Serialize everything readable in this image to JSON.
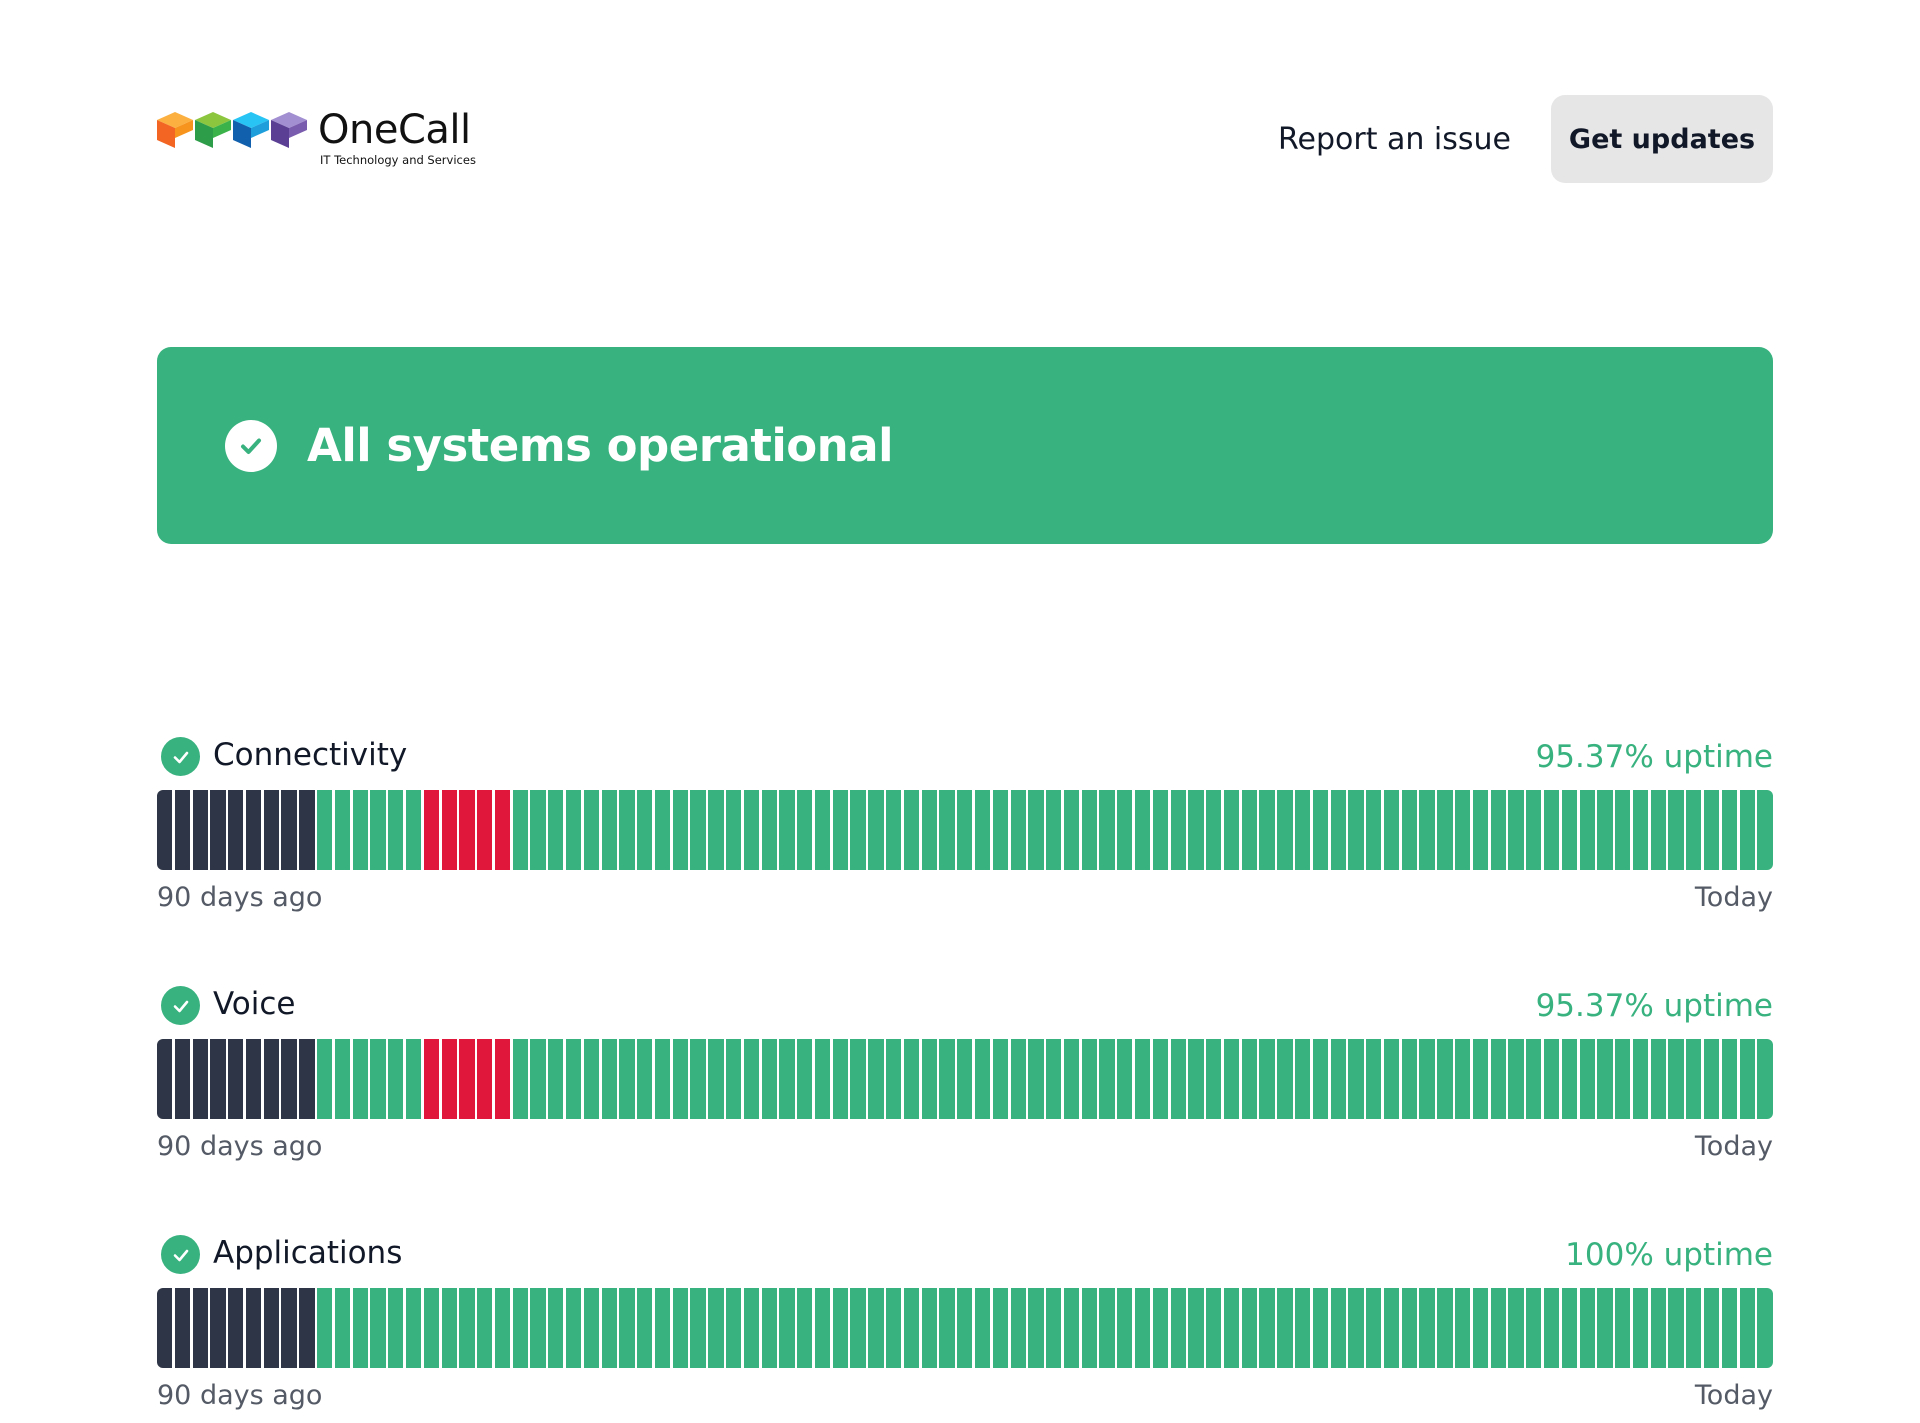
{
  "header": {
    "logo": {
      "name": "OneCall",
      "tagline": "IT Technology and Services",
      "colors": [
        "#f7941d",
        "#3cb34a",
        "#1e9fdc",
        "#7a5cae"
      ]
    },
    "report_link": "Report an issue",
    "updates_button": "Get updates"
  },
  "banner": {
    "text": "All systems operational",
    "color": "#38b27f",
    "icon": "check-circle-icon"
  },
  "colors": {
    "up": "#38b27f",
    "down": "#e0173a",
    "no_data": "#2e3546"
  },
  "components": [
    {
      "name": "Connectivity",
      "uptime": "95.37% uptime",
      "axis_start": "90 days ago",
      "axis_end": "Today",
      "days": [
        {
          "status": "no_data",
          "count": 9
        },
        {
          "status": "up",
          "count": 6
        },
        {
          "status": "down",
          "count": 5
        },
        {
          "status": "up",
          "count": 71
        }
      ]
    },
    {
      "name": "Voice",
      "uptime": "95.37% uptime",
      "axis_start": "90 days ago",
      "axis_end": "Today",
      "days": [
        {
          "status": "no_data",
          "count": 9
        },
        {
          "status": "up",
          "count": 6
        },
        {
          "status": "down",
          "count": 5
        },
        {
          "status": "up",
          "count": 71
        }
      ]
    },
    {
      "name": "Applications",
      "uptime": "100% uptime",
      "axis_start": "90 days ago",
      "axis_end": "Today",
      "days": [
        {
          "status": "no_data",
          "count": 9
        },
        {
          "status": "up",
          "count": 82
        }
      ]
    }
  ]
}
